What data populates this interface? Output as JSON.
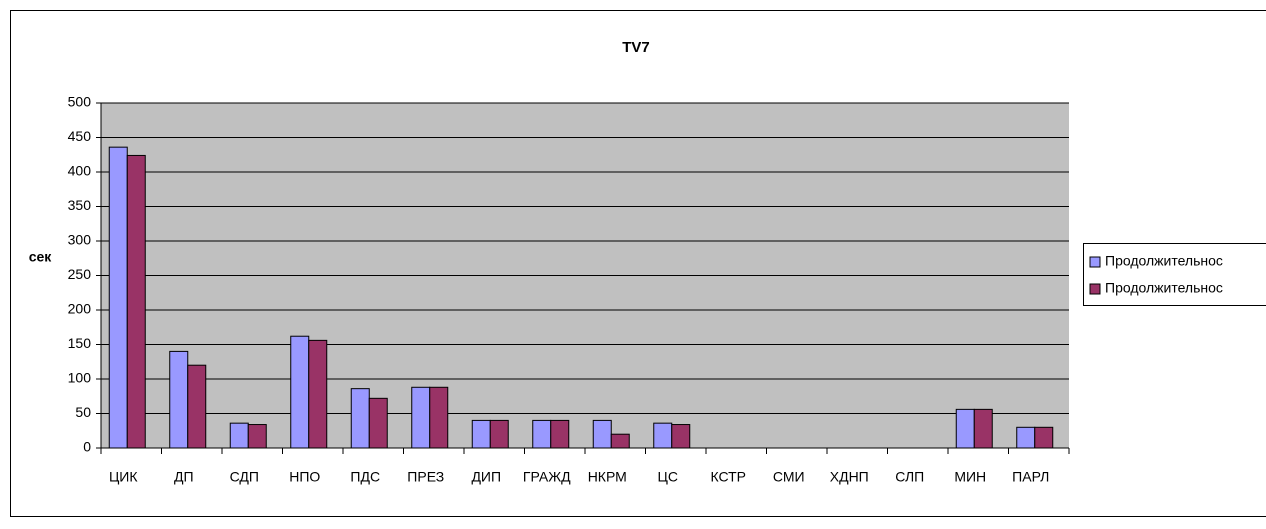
{
  "chart_data": {
    "type": "bar",
    "title": "TV7",
    "y_label": "сек",
    "categories": [
      "ЦИК",
      "ДП",
      "СДП",
      "НПО",
      "ПДС",
      "ПРЕЗ",
      "ДИП",
      "ГРАЖД",
      "НКРМ",
      "ЦС",
      "КСТР",
      "СМИ",
      "ХДНП",
      "СЛП",
      "МИН",
      "ПАРЛ"
    ],
    "series": [
      {
        "name": "Продолжительнос",
        "color": "#9999ff",
        "values": [
          436,
          140,
          36,
          162,
          86,
          88,
          40,
          40,
          40,
          36,
          0,
          0,
          0,
          0,
          56,
          30
        ]
      },
      {
        "name": "Продолжительнос",
        "color": "#993366",
        "values": [
          424,
          120,
          34,
          156,
          72,
          88,
          40,
          40,
          20,
          34,
          0,
          0,
          0,
          0,
          56,
          30
        ]
      }
    ],
    "ylim": [
      0,
      500
    ],
    "yticks": [
      0,
      50,
      100,
      150,
      200,
      250,
      300,
      350,
      400,
      450,
      500
    ],
    "grid": true,
    "legend": "right"
  }
}
